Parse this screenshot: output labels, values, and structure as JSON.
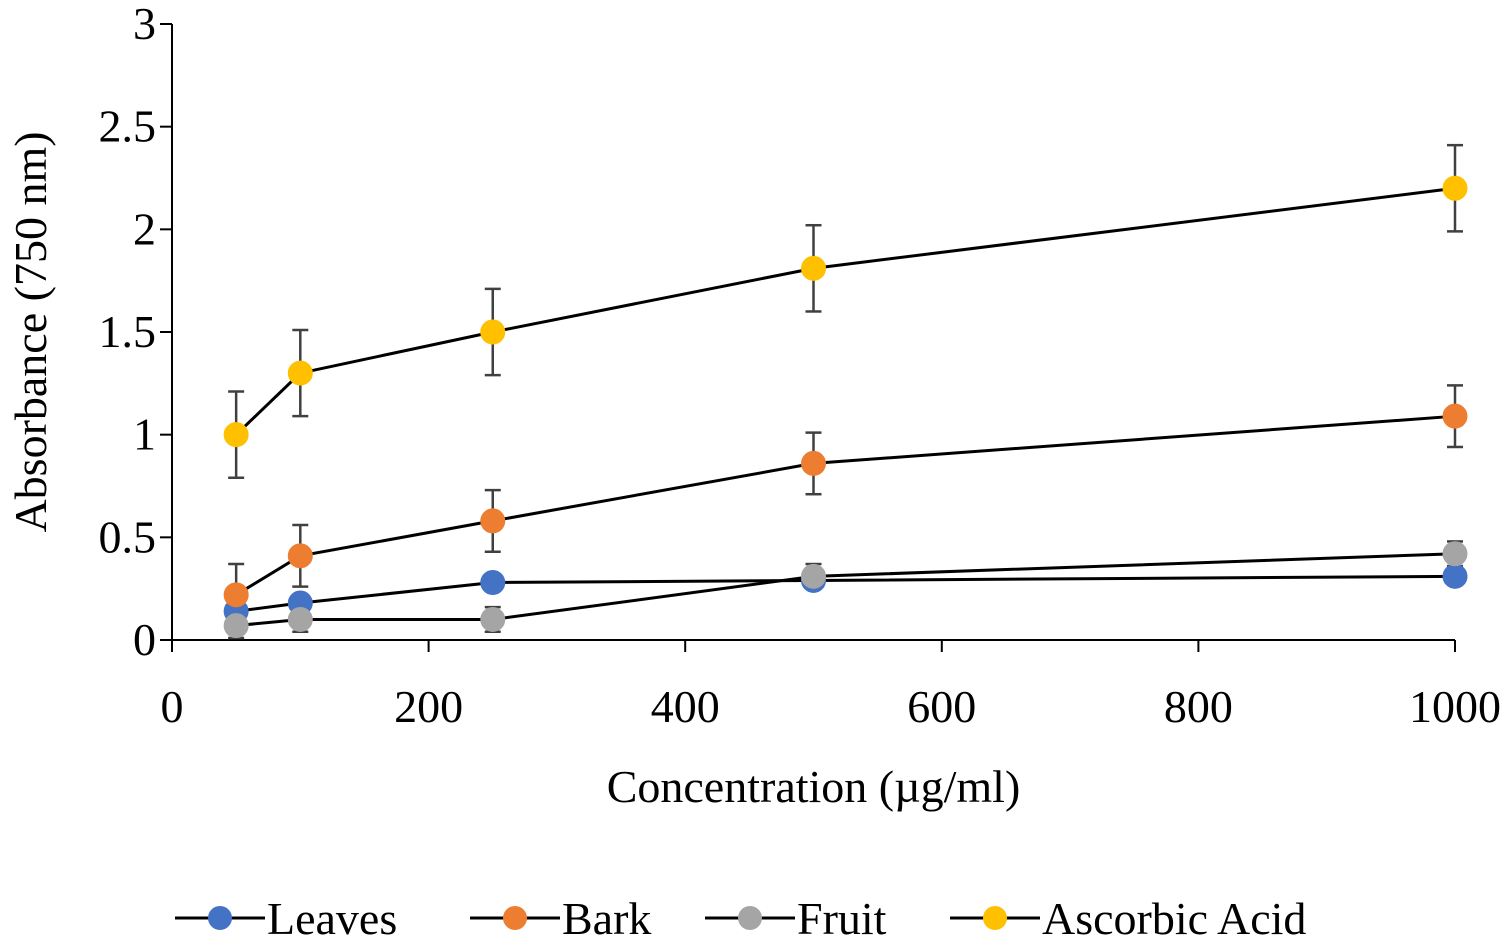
{
  "chart_data": {
    "type": "line",
    "title": "",
    "xlabel": "Concentration (µg/ml)",
    "ylabel": "Absorbance (750 nm)",
    "xlim": [
      0,
      1000
    ],
    "ylim": [
      0,
      3
    ],
    "xticks": [
      0,
      200,
      400,
      600,
      800,
      1000
    ],
    "yticks": [
      0,
      0.5,
      1,
      1.5,
      2,
      2.5,
      3
    ],
    "xtick_labels": [
      "0",
      "200",
      "400",
      "600",
      "800",
      "1000"
    ],
    "ytick_labels": [
      "0",
      "0.5",
      "1",
      "1.5",
      "2",
      "2.5",
      "3"
    ],
    "grid": false,
    "legend_position": "bottom",
    "x": [
      50,
      100,
      250,
      500,
      1000
    ],
    "series": [
      {
        "name": "Leaves",
        "color": "#4472C4",
        "values": [
          0.14,
          0.18,
          0.28,
          0.29,
          0.31
        ],
        "errors": [
          0,
          0,
          0,
          0,
          0
        ]
      },
      {
        "name": "Bark",
        "color": "#ED7D31",
        "values": [
          0.22,
          0.41,
          0.58,
          0.86,
          1.09
        ],
        "errors": [
          0.15,
          0.15,
          0.15,
          0.15,
          0.15
        ]
      },
      {
        "name": "Fruit",
        "color": "#A5A5A5",
        "values": [
          0.07,
          0.1,
          0.1,
          0.31,
          0.42
        ],
        "errors": [
          0.06,
          0.06,
          0.06,
          0.06,
          0.06
        ]
      },
      {
        "name": "Ascorbic Acid",
        "color": "#FFC000",
        "values": [
          1.0,
          1.3,
          1.5,
          1.81,
          2.2
        ],
        "errors": [
          0.21,
          0.21,
          0.21,
          0.21,
          0.21
        ]
      }
    ]
  }
}
